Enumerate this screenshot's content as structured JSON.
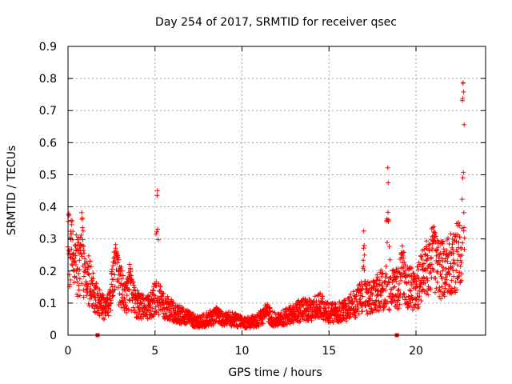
{
  "chart_data": {
    "type": "scatter",
    "title": "Day 254 of 2017, SRMTID for receiver qsec",
    "xlabel": "GPS time / hours",
    "ylabel": "SRMTID / TECUs",
    "xlim": [
      0,
      24
    ],
    "ylim": [
      0,
      0.9
    ],
    "xticks": [
      0,
      5,
      10,
      15,
      20
    ],
    "xtick_labels": [
      "0",
      "5",
      "10",
      "15",
      "20"
    ],
    "yticks": [
      0,
      0.1,
      0.2,
      0.3,
      0.4,
      0.5,
      0.6,
      0.7,
      0.8,
      0.9
    ],
    "ytick_labels": [
      "0",
      "0.1",
      "0.2",
      "0.3",
      "0.4",
      "0.5",
      "0.6",
      "0.7",
      "0.8",
      "0.9"
    ],
    "grid": true,
    "marker": "+",
    "color": "#ff0000",
    "series": [
      {
        "name": "SRMTID",
        "trend": [
          [
            0.0,
            0.27
          ],
          [
            0.3,
            0.24
          ],
          [
            0.6,
            0.21
          ],
          [
            0.9,
            0.19
          ],
          [
            1.2,
            0.17
          ],
          [
            1.5,
            0.13
          ],
          [
            1.8,
            0.1
          ],
          [
            2.1,
            0.08
          ],
          [
            2.4,
            0.1
          ],
          [
            2.7,
            0.2
          ],
          [
            3.0,
            0.16
          ],
          [
            3.3,
            0.12
          ],
          [
            3.6,
            0.14
          ],
          [
            3.9,
            0.1
          ],
          [
            4.2,
            0.09
          ],
          [
            4.5,
            0.08
          ],
          [
            4.8,
            0.1
          ],
          [
            5.1,
            0.12
          ],
          [
            5.4,
            0.1
          ],
          [
            5.8,
            0.08
          ],
          [
            6.2,
            0.07
          ],
          [
            6.6,
            0.06
          ],
          [
            7.0,
            0.05
          ],
          [
            7.5,
            0.04
          ],
          [
            8.0,
            0.05
          ],
          [
            8.5,
            0.06
          ],
          [
            9.0,
            0.05
          ],
          [
            9.5,
            0.05
          ],
          [
            10.0,
            0.04
          ],
          [
            10.5,
            0.04
          ],
          [
            11.0,
            0.05
          ],
          [
            11.4,
            0.07
          ],
          [
            11.8,
            0.05
          ],
          [
            12.2,
            0.05
          ],
          [
            12.6,
            0.06
          ],
          [
            13.0,
            0.07
          ],
          [
            13.5,
            0.08
          ],
          [
            14.0,
            0.08
          ],
          [
            14.5,
            0.09
          ],
          [
            15.0,
            0.07
          ],
          [
            15.5,
            0.07
          ],
          [
            16.0,
            0.08
          ],
          [
            16.5,
            0.1
          ],
          [
            17.0,
            0.12
          ],
          [
            17.5,
            0.12
          ],
          [
            18.0,
            0.14
          ],
          [
            18.5,
            0.14
          ],
          [
            19.0,
            0.15
          ],
          [
            19.5,
            0.15
          ],
          [
            20.0,
            0.14
          ],
          [
            20.5,
            0.2
          ],
          [
            21.0,
            0.24
          ],
          [
            21.5,
            0.2
          ],
          [
            22.0,
            0.22
          ],
          [
            22.5,
            0.25
          ],
          [
            22.8,
            0.27
          ]
        ],
        "spikes": [
          {
            "x": 0.8,
            "peak": 0.39,
            "width": 0.12
          },
          {
            "x": 5.15,
            "peak": 0.48,
            "width": 0.1
          },
          {
            "x": 18.4,
            "peak": 0.55,
            "width": 0.12
          },
          {
            "x": 17.0,
            "peak": 0.33,
            "width": 0.08
          },
          {
            "x": 22.7,
            "peak": 0.82,
            "width": 0.12
          },
          {
            "x": 2.8,
            "peak": 0.27,
            "width": 0.2
          },
          {
            "x": 3.5,
            "peak": 0.23,
            "width": 0.2
          },
          {
            "x": 19.2,
            "peak": 0.29,
            "width": 0.2
          },
          {
            "x": 21.1,
            "peak": 0.34,
            "width": 0.2
          }
        ],
        "zero_markers_x": [
          1.7,
          18.9
        ],
        "sample_step_hours": 0.01,
        "spread": 0.45
      }
    ]
  }
}
